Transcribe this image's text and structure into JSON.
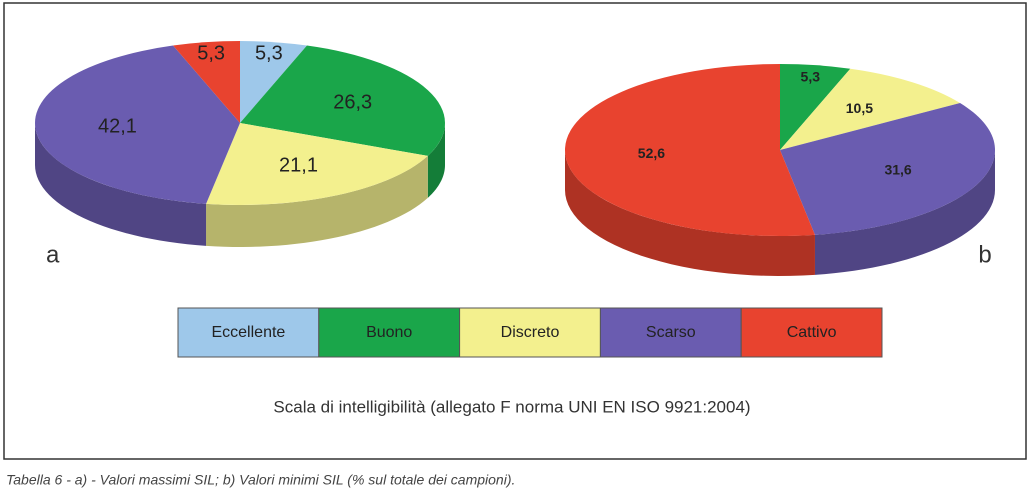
{
  "chart_data": [
    {
      "type": "pie",
      "panel_label": "a",
      "values": [
        5.3,
        26.3,
        21.1,
        42.1,
        5.3
      ],
      "value_labels": [
        "5,3",
        "26,3",
        "21,1",
        "42,1",
        "5,3"
      ],
      "colors": [
        "#9ec8ea",
        "#1aa64a",
        "#f3f08e",
        "#6a5cb0",
        "#e8432f"
      ]
    },
    {
      "type": "pie",
      "panel_label": "b",
      "values": [
        5.3,
        10.5,
        31.6,
        52.6
      ],
      "value_labels": [
        "5,3",
        "10,5",
        "31,6",
        "52,6"
      ],
      "colors": [
        "#1aa64a",
        "#f3f08e",
        "#6a5cb0",
        "#e8432f"
      ]
    }
  ],
  "legend": {
    "title": "Scala di intelligibilità (allegato F norma UNI EN ISO 9921:2004)",
    "categories": [
      "Eccellente",
      "Buono",
      "Discreto",
      "Scarso",
      "Cattivo"
    ],
    "colors": [
      "#9ec8ea",
      "#1aa64a",
      "#f3f08e",
      "#6a5cb0",
      "#e8432f"
    ]
  },
  "caption": "Tabella 6 - a) - Valori massimi SIL; b) Valori minimi SIL (% sul totale dei campioni)."
}
